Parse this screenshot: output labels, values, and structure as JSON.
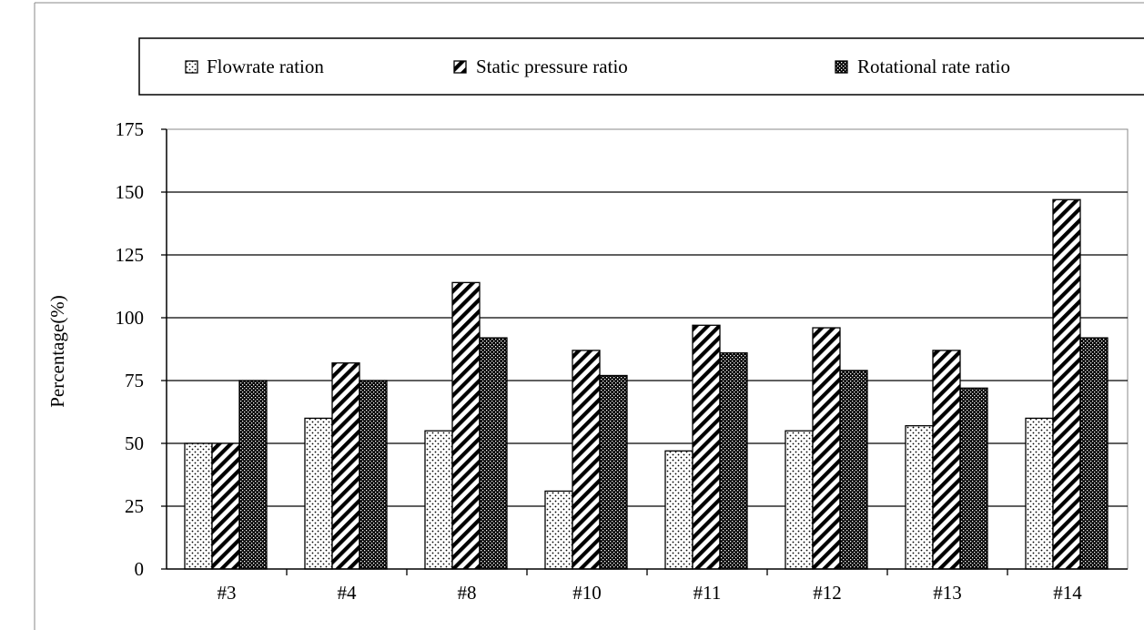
{
  "chart_data": {
    "type": "bar",
    "title": "",
    "xlabel": "",
    "ylabel": "Percentage(%)",
    "ylim": [
      0,
      175
    ],
    "yticks": [
      0,
      25,
      50,
      75,
      100,
      125,
      150,
      175
    ],
    "grid": true,
    "legend_position": "top",
    "categories": [
      "#3",
      "#4",
      "#8",
      "#10",
      "#11",
      "#12",
      "#13",
      "#14"
    ],
    "series": [
      {
        "name": "Flowrate ration",
        "pattern": "dots",
        "values": [
          50,
          60,
          55,
          31,
          47,
          55,
          57,
          60
        ]
      },
      {
        "name": "Static pressure ratio",
        "pattern": "diagonal-stripes",
        "values": [
          50,
          82,
          114,
          87,
          97,
          96,
          87,
          147
        ]
      },
      {
        "name": "Rotational rate ratio",
        "pattern": "dense-dots",
        "values": [
          75,
          75,
          92,
          77,
          86,
          79,
          72,
          92
        ]
      }
    ]
  }
}
